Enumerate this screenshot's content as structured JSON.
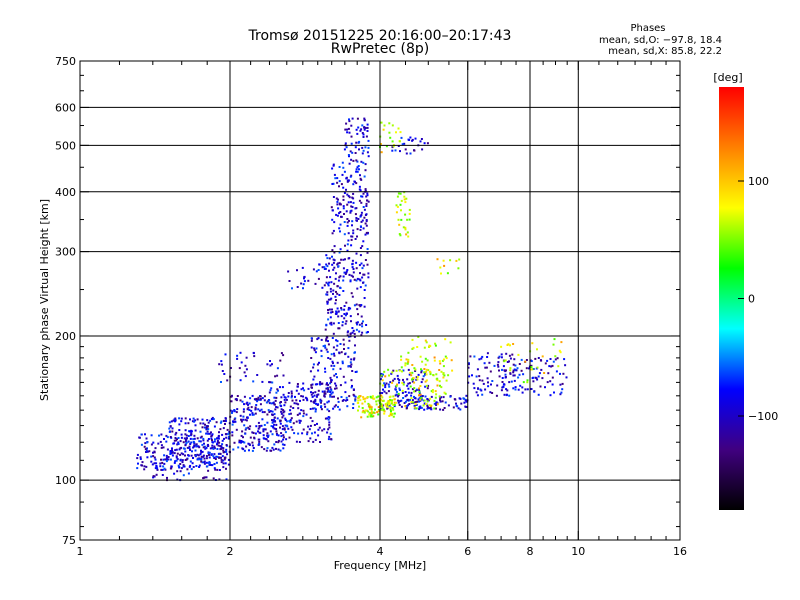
{
  "chart_data": {
    "type": "scatter",
    "title": "Tromsø 20151225 20:16:00–20:17:43",
    "subtitle": "RwPretec (8p)",
    "xlabel": "Frequency [MHz]",
    "ylabel": "Stationary phase Virtual Height [km]",
    "xscale": "log",
    "yscale": "log",
    "xlim": [
      1,
      16
    ],
    "ylim": [
      75,
      750
    ],
    "xticks": [
      1,
      2,
      4,
      6,
      8,
      10,
      16
    ],
    "xtick_labels": [
      "1",
      "2",
      "4",
      "6",
      "8",
      "10",
      "16"
    ],
    "xgrid": [
      2,
      4,
      6,
      8,
      10
    ],
    "yticks": [
      75,
      100,
      200,
      300,
      400,
      500,
      600,
      750
    ],
    "ytick_labels": [
      "75",
      "100",
      "200",
      "300",
      "400",
      "500",
      "600",
      "750"
    ],
    "ygrid": [
      100,
      200,
      300,
      400,
      500,
      600
    ],
    "grid": true,
    "stats": {
      "heading": "Phases",
      "lines": [
        "mean, sd,O: −97.8, 18.4",
        "mean, sd,X:  85.8, 22.2"
      ]
    },
    "colorbar": {
      "label": "[deg]",
      "range": [
        -180,
        180
      ],
      "ticks": [
        100,
        0,
        -100
      ],
      "tick_labels": [
        "100",
        "0",
        "−100"
      ],
      "colors": [
        "#ff0000",
        "#ff8000",
        "#ffff00",
        "#00ff00",
        "#00ffff",
        "#0000ff",
        "#400080",
        "#000000"
      ]
    },
    "series": [
      {
        "description": "O-mode points, mostly blue/purple (phase around -100 deg)",
        "color_range": [
          -140,
          -70
        ],
        "clusters": [
          {
            "f": [
              1.3,
              2.0
            ],
            "h": [
              105,
              125
            ],
            "n": 200
          },
          {
            "f": [
              1.5,
              2.0
            ],
            "h": [
              110,
              135
            ],
            "n": 200
          },
          {
            "f": [
              2.0,
              2.6
            ],
            "h": [
              115,
              150
            ],
            "n": 220
          },
          {
            "f": [
              2.4,
              3.2
            ],
            "h": [
              120,
              160
            ],
            "n": 180
          },
          {
            "f": [
              2.9,
              3.6
            ],
            "h": [
              140,
              200
            ],
            "n": 170
          },
          {
            "f": [
              3.1,
              3.8
            ],
            "h": [
              200,
              300
            ],
            "n": 180
          },
          {
            "f": [
              3.2,
              3.8
            ],
            "h": [
              300,
              460
            ],
            "n": 170
          },
          {
            "f": [
              3.4,
              3.8
            ],
            "h": [
              460,
              570
            ],
            "n": 60
          },
          {
            "f": [
              2.6,
              3.4
            ],
            "h": [
              250,
              285
            ],
            "n": 40
          },
          {
            "f": [
              1.9,
              2.6
            ],
            "h": [
              160,
              185
            ],
            "n": 40
          },
          {
            "f": [
              4.0,
              5.0
            ],
            "h": [
              140,
              170
            ],
            "n": 110
          },
          {
            "f": [
              4.5,
              6.0
            ],
            "h": [
              140,
              150
            ],
            "n": 80
          },
          {
            "f": [
              6.0,
              7.5
            ],
            "h": [
              150,
              185
            ],
            "n": 80
          },
          {
            "f": [
              7.0,
              9.5
            ],
            "h": [
              150,
              180
            ],
            "n": 90
          },
          {
            "f": [
              4.2,
              5.0
            ],
            "h": [
              480,
              520
            ],
            "n": 25
          },
          {
            "f": [
              1.4,
              2.0
            ],
            "h": [
              100,
              112
            ],
            "n": 60
          }
        ]
      },
      {
        "description": "X-mode points, yellow/cyan/green (phase around +85 deg)",
        "color_range": [
          20,
          130
        ],
        "clusters": [
          {
            "f": [
              3.6,
              4.3
            ],
            "h": [
              135,
              150
            ],
            "n": 120
          },
          {
            "f": [
              4.0,
              5.5
            ],
            "h": [
              140,
              170
            ],
            "n": 90
          },
          {
            "f": [
              4.4,
              5.6
            ],
            "h": [
              165,
              200
            ],
            "n": 60
          },
          {
            "f": [
              4.3,
              4.6
            ],
            "h": [
              320,
              400
            ],
            "n": 30
          },
          {
            "f": [
              4.0,
              4.4
            ],
            "h": [
              480,
              560
            ],
            "n": 20
          },
          {
            "f": [
              7.0,
              9.5
            ],
            "h": [
              160,
              200
            ],
            "n": 30
          },
          {
            "f": [
              5.0,
              6.0
            ],
            "h": [
              270,
              290
            ],
            "n": 10
          }
        ]
      }
    ]
  }
}
